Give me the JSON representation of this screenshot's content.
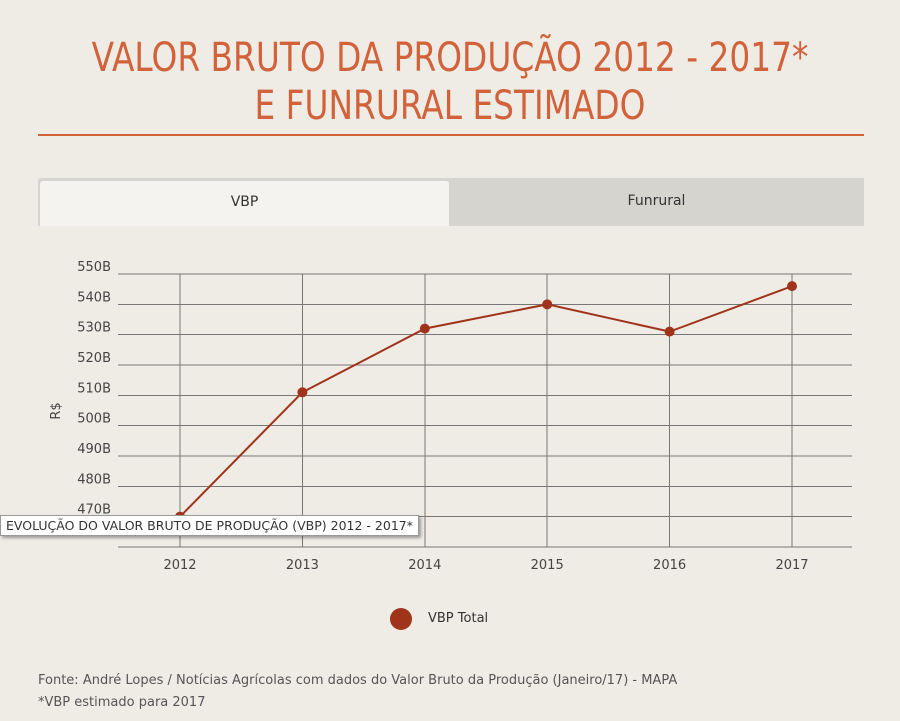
{
  "title": {
    "line1": "VALOR BRUTO DA PRODUÇÃO 2012 - 2017*",
    "line2": "E FUNRURAL ESTIMADO"
  },
  "tabs": [
    {
      "label": "VBP",
      "active": true
    },
    {
      "label": "Funrural",
      "active": false
    }
  ],
  "tooltip": "EVOLUÇÃO DO  VALOR BRUTO DE PRODUÇÃO (VBP) 2012 - 2017*",
  "legend": {
    "label": "VBP Total",
    "color": "#a0341a"
  },
  "footer": {
    "source": "Fonte:  André Lopes / Notícias Agrícolas com dados do Valor Bruto da Produção (Janeiro/17) - MAPA",
    "note": "*VBP estimado para 2017"
  },
  "colors": {
    "accent": "#d2623a",
    "series": "#a0341a",
    "grid": "#777777"
  },
  "chart_data": {
    "type": "line",
    "categories": [
      "2012",
      "2013",
      "2014",
      "2015",
      "2016",
      "2017"
    ],
    "series": [
      {
        "name": "VBP Total",
        "values": [
          470,
          511,
          532,
          540,
          531,
          546
        ]
      }
    ],
    "ylabel": "R$",
    "ylim": [
      460,
      550
    ],
    "yticks": [
      {
        "value": 550,
        "label": "550B"
      },
      {
        "value": 540,
        "label": "540B"
      },
      {
        "value": 530,
        "label": "530B"
      },
      {
        "value": 520,
        "label": "520B"
      },
      {
        "value": 510,
        "label": "510B"
      },
      {
        "value": 500,
        "label": "500B"
      },
      {
        "value": 490,
        "label": "490B"
      },
      {
        "value": 480,
        "label": "480B"
      },
      {
        "value": 470,
        "label": "470B"
      }
    ],
    "grid": true
  }
}
